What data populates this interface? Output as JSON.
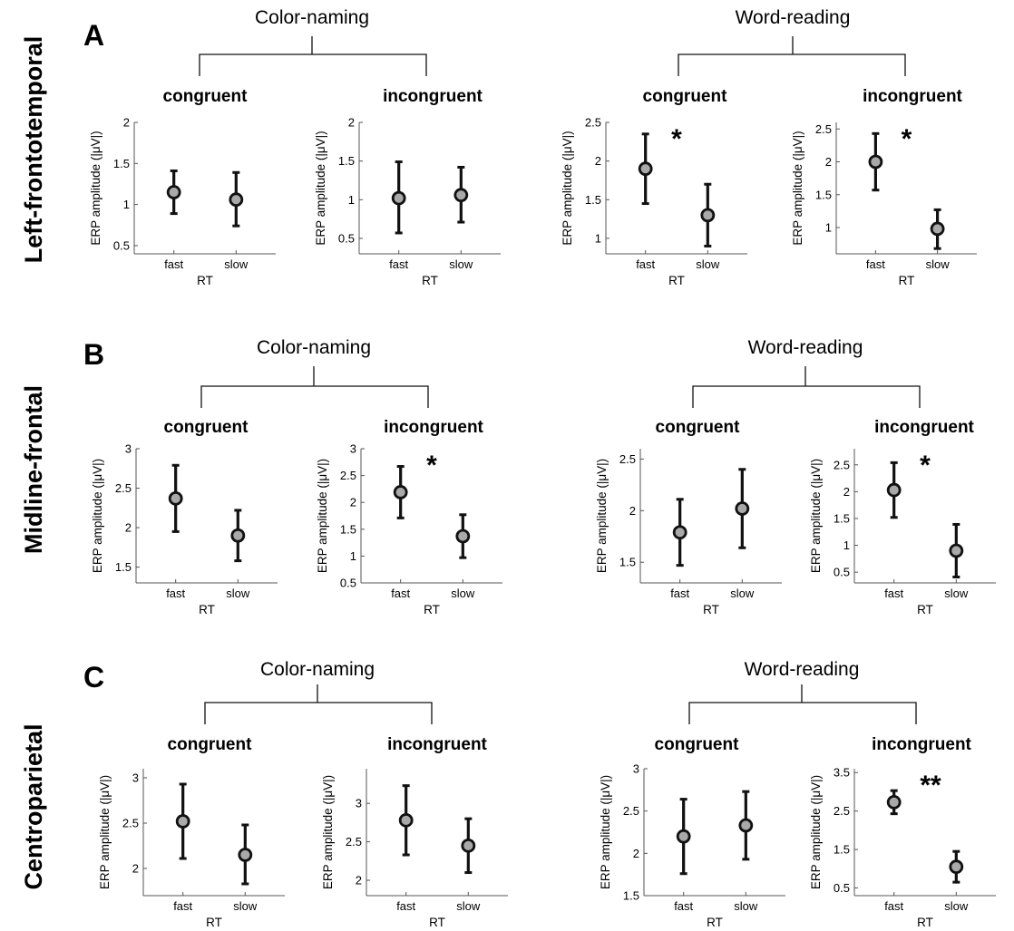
{
  "panels": [
    {
      "letter": "A",
      "region": "Left-frontotemporal",
      "tasks": [
        {
          "name": "Color-naming",
          "subplots": [
            {
              "title": "congruent",
              "ylabel": "ERP amplitude (|μV|)",
              "xlabel": "RT",
              "categories": [
                "fast",
                "slow"
              ],
              "yticks": [
                "0.5",
                "1",
                "1.5",
                "2"
              ],
              "ylim": [
                0.4,
                2.0
              ],
              "means": [
                1.15,
                1.06
              ],
              "lower": [
                0.89,
                0.74
              ],
              "upper": [
                1.41,
                1.39
              ],
              "significance": ""
            },
            {
              "title": "incongruent",
              "ylabel": "ERP amplitude (|μV|)",
              "xlabel": "RT",
              "categories": [
                "fast",
                "slow"
              ],
              "yticks": [
                "0.5",
                "1",
                "1.5",
                "2"
              ],
              "ylim": [
                0.3,
                2.0
              ],
              "means": [
                1.02,
                1.06
              ],
              "lower": [
                0.57,
                0.71
              ],
              "upper": [
                1.49,
                1.42
              ],
              "significance": ""
            }
          ]
        },
        {
          "name": "Word-reading",
          "subplots": [
            {
              "title": "congruent",
              "ylabel": "ERP amplitude (|μV|)",
              "xlabel": "RT",
              "categories": [
                "fast",
                "slow"
              ],
              "yticks": [
                "1",
                "1.5",
                "2",
                "2.5"
              ],
              "ylim": [
                0.8,
                2.5
              ],
              "means": [
                1.9,
                1.3
              ],
              "lower": [
                1.45,
                0.9
              ],
              "upper": [
                2.35,
                1.7
              ],
              "significance": "*"
            },
            {
              "title": "incongruent",
              "ylabel": "ERP amplitude (|μV|)",
              "xlabel": "RT",
              "categories": [
                "fast",
                "slow"
              ],
              "yticks": [
                "1",
                "1.5",
                "2",
                "2.5"
              ],
              "ylim": [
                0.6,
                2.6
              ],
              "means": [
                2.0,
                0.98
              ],
              "lower": [
                1.57,
                0.68
              ],
              "upper": [
                2.43,
                1.27
              ],
              "significance": "*"
            }
          ]
        }
      ]
    },
    {
      "letter": "B",
      "region": "Midline-frontal",
      "tasks": [
        {
          "name": "Color-naming",
          "subplots": [
            {
              "title": "congruent",
              "ylabel": "ERP amplitude (|μV|)",
              "xlabel": "RT",
              "categories": [
                "fast",
                "slow"
              ],
              "yticks": [
                "1.5",
                "2",
                "2.5",
                "3"
              ],
              "ylim": [
                1.3,
                3.0
              ],
              "means": [
                2.37,
                1.9
              ],
              "lower": [
                1.95,
                1.58
              ],
              "upper": [
                2.79,
                2.22
              ],
              "significance": ""
            },
            {
              "title": "incongruent",
              "ylabel": "ERP amplitude (|μV|)",
              "xlabel": "RT",
              "categories": [
                "fast",
                "slow"
              ],
              "yticks": [
                "0.5",
                "1",
                "1.5",
                "2",
                "2.5",
                "3"
              ],
              "ylim": [
                0.5,
                3.0
              ],
              "means": [
                2.19,
                1.37
              ],
              "lower": [
                1.71,
                0.97
              ],
              "upper": [
                2.67,
                1.77
              ],
              "significance": "*"
            }
          ]
        },
        {
          "name": "Word-reading",
          "subplots": [
            {
              "title": "congruent",
              "ylabel": "ERP amplitude (|μV|)",
              "xlabel": "RT",
              "categories": [
                "fast",
                "slow"
              ],
              "yticks": [
                "1.5",
                "2",
                "2.5"
              ],
              "ylim": [
                1.3,
                2.6
              ],
              "means": [
                1.79,
                2.02
              ],
              "lower": [
                1.47,
                1.64
              ],
              "upper": [
                2.11,
                2.4
              ],
              "significance": ""
            },
            {
              "title": "incongruent",
              "ylabel": "ERP amplitude (|μV|)",
              "xlabel": "RT",
              "categories": [
                "fast",
                "slow"
              ],
              "yticks": [
                "0.5",
                "1",
                "1.5",
                "2",
                "2.5"
              ],
              "ylim": [
                0.3,
                2.8
              ],
              "means": [
                2.03,
                0.9
              ],
              "lower": [
                1.52,
                0.41
              ],
              "upper": [
                2.54,
                1.39
              ],
              "significance": "*"
            }
          ]
        }
      ]
    },
    {
      "letter": "C",
      "region": "Centroparietal",
      "tasks": [
        {
          "name": "Color-naming",
          "subplots": [
            {
              "title": "congruent",
              "ylabel": "ERP amplitude (|μV|)",
              "xlabel": "RT",
              "categories": [
                "fast",
                "slow"
              ],
              "yticks": [
                "2",
                "2.5",
                "3"
              ],
              "ylim": [
                1.7,
                3.1
              ],
              "means": [
                2.52,
                2.15
              ],
              "lower": [
                2.11,
                1.83
              ],
              "upper": [
                2.93,
                2.48
              ],
              "significance": ""
            },
            {
              "title": "incongruent",
              "ylabel": "ERP amplitude (|μV|)",
              "xlabel": "RT",
              "categories": [
                "fast",
                "slow"
              ],
              "yticks": [
                "2",
                "2.5",
                "3"
              ],
              "ylim": [
                1.8,
                3.45
              ],
              "means": [
                2.78,
                2.45
              ],
              "lower": [
                2.33,
                2.1
              ],
              "upper": [
                3.23,
                2.8
              ],
              "significance": ""
            }
          ]
        },
        {
          "name": "Word-reading",
          "subplots": [
            {
              "title": "congruent",
              "ylabel": "ERP amplitude (|μV|)",
              "xlabel": "RT",
              "categories": [
                "fast",
                "slow"
              ],
              "yticks": [
                "1.5",
                "2",
                "2.5",
                "3"
              ],
              "ylim": [
                1.5,
                3.0
              ],
              "means": [
                2.2,
                2.33
              ],
              "lower": [
                1.76,
                1.93
              ],
              "upper": [
                2.64,
                2.73
              ],
              "significance": ""
            },
            {
              "title": "incongruent",
              "ylabel": "ERP amplitude (|μV|)",
              "xlabel": "RT",
              "categories": [
                "fast",
                "slow"
              ],
              "yticks": [
                "0.5",
                "1.5",
                "2.5",
                "3.5"
              ],
              "ylim": [
                0.3,
                3.6
              ],
              "means": [
                2.73,
                1.05
              ],
              "lower": [
                2.43,
                0.65
              ],
              "upper": [
                3.03,
                1.45
              ],
              "significance": "**"
            }
          ]
        }
      ]
    }
  ],
  "style": {
    "marker_fill": "#a9a9a9",
    "marker_stroke": "#111111",
    "errorbar_color": "#111111",
    "axis_color": "#555555"
  },
  "chart_data": {
    "type": "scatter",
    "description_units": "ERP amplitude (|μV|), mean with error bars, fast vs slow RT",
    "x": [
      "fast",
      "slow"
    ],
    "xlabel": "RT",
    "ylabel": "ERP amplitude (|μV|)",
    "grid": false,
    "legend": "none",
    "series": [
      {
        "name": "Left-frontotemporal / Color-naming / congruent",
        "values": [
          1.15,
          1.06
        ]
      },
      {
        "name": "Left-frontotemporal / Color-naming / incongruent",
        "values": [
          1.02,
          1.06
        ]
      },
      {
        "name": "Left-frontotemporal / Word-reading / congruent",
        "values": [
          1.9,
          1.3
        ]
      },
      {
        "name": "Left-frontotemporal / Word-reading / incongruent",
        "values": [
          2.0,
          0.98
        ]
      },
      {
        "name": "Midline-frontal / Color-naming / congruent",
        "values": [
          2.37,
          1.9
        ]
      },
      {
        "name": "Midline-frontal / Color-naming / incongruent",
        "values": [
          2.19,
          1.37
        ]
      },
      {
        "name": "Midline-frontal / Word-reading / congruent",
        "values": [
          1.79,
          2.02
        ]
      },
      {
        "name": "Midline-frontal / Word-reading / incongruent",
        "values": [
          2.03,
          0.9
        ]
      },
      {
        "name": "Centroparietal / Color-naming / congruent",
        "values": [
          2.52,
          2.15
        ]
      },
      {
        "name": "Centroparietal / Color-naming / incongruent",
        "values": [
          2.78,
          2.45
        ]
      },
      {
        "name": "Centroparietal / Word-reading / congruent",
        "values": [
          2.2,
          2.33
        ]
      },
      {
        "name": "Centroparietal / Word-reading / incongruent",
        "values": [
          2.73,
          1.05
        ]
      }
    ]
  }
}
